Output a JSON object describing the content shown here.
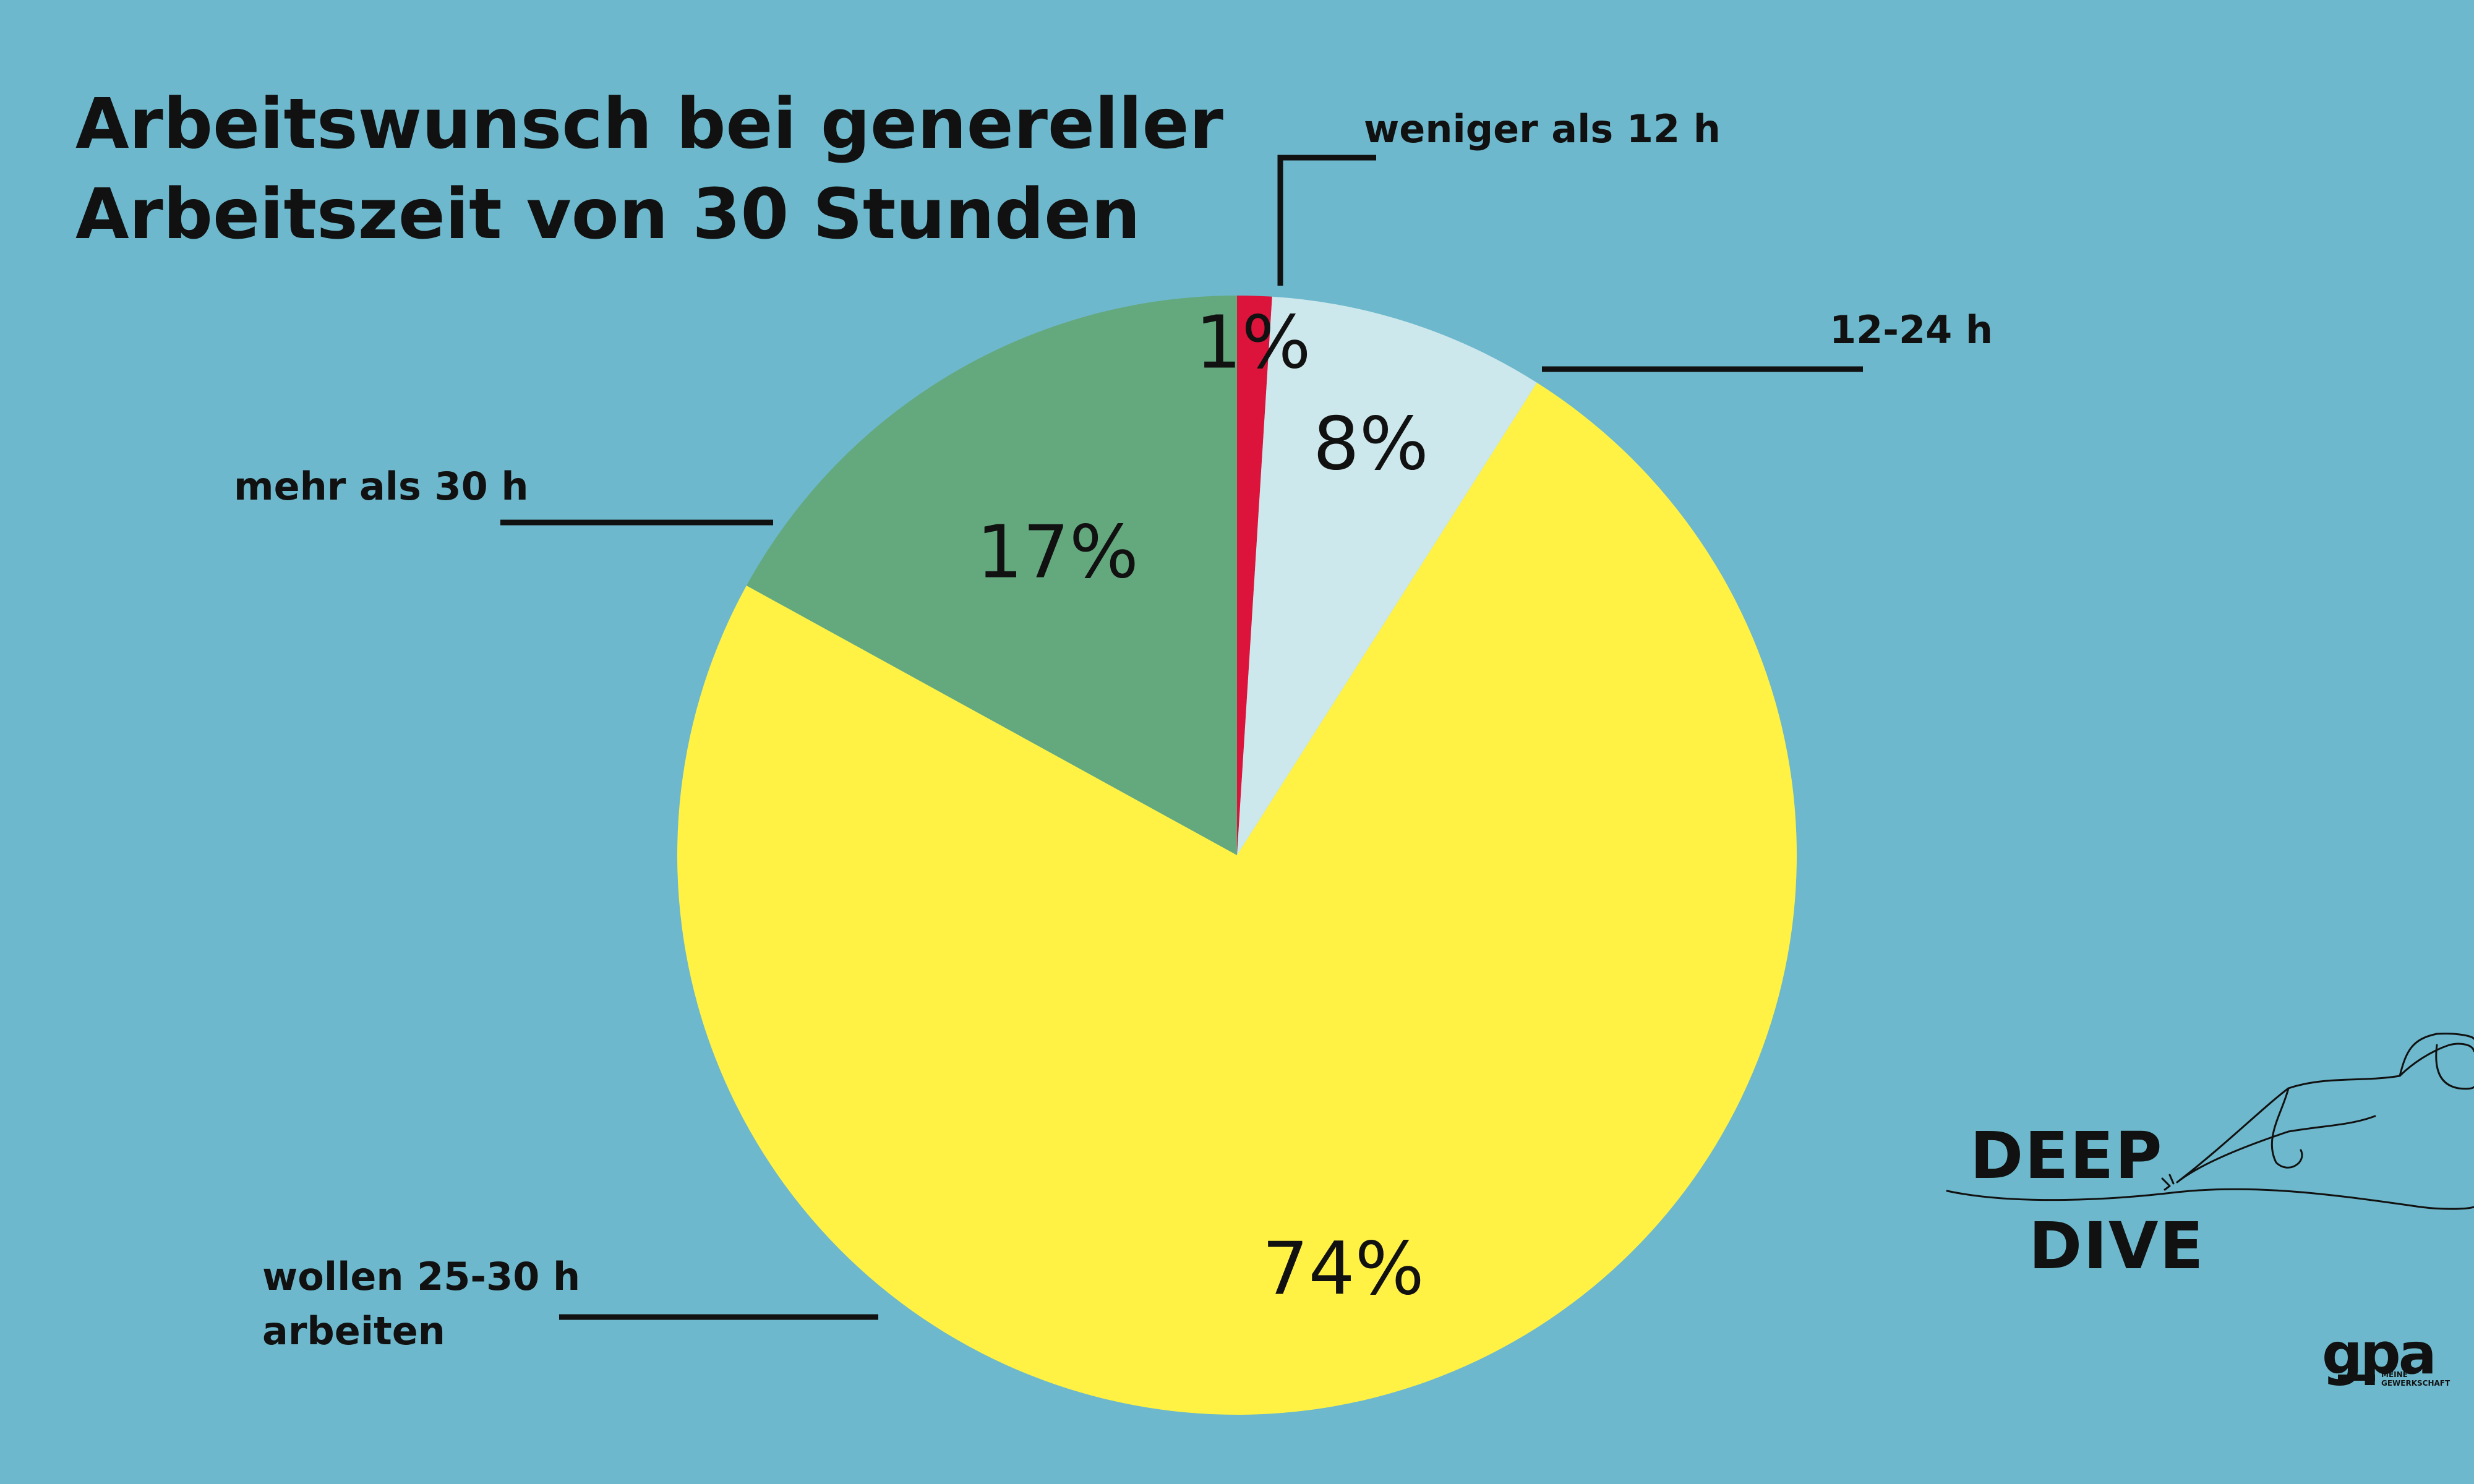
{
  "title": {
    "line1": "Arbeitswunsch bei genereller",
    "line2": "Arbeitszeit von 30 Stunden"
  },
  "chart_data": {
    "type": "pie",
    "title": "Arbeitswunsch bei genereller Arbeitszeit von 30 Stunden",
    "slices": [
      {
        "name": "weniger als 12 h",
        "value": 1,
        "percent_label": "1%",
        "color": "#dc143c"
      },
      {
        "name": "12-24 h",
        "value": 8,
        "percent_label": "8%",
        "color": "#cde8ec"
      },
      {
        "name": "wollen 25-30 h arbeiten",
        "value": 74,
        "percent_label": "74%",
        "color": "#fff245"
      },
      {
        "name": "mehr als 30 h",
        "value": 17,
        "percent_label": "17%",
        "color": "#64a87e"
      }
    ]
  },
  "category_labels": {
    "weniger": "weniger als 12 h",
    "mittel": "12-24 h",
    "wollen_line1": "wollen 25-30 h",
    "wollen_line2": "arbeiten",
    "mehr": "mehr als 30 h"
  },
  "logo": {
    "deep": "DEEP",
    "dive": "DIVE",
    "gpa": "gpa",
    "gpa_sub_line1": "MEINE",
    "gpa_sub_line2": "GEWERKSCHAFT"
  },
  "colors": {
    "background": "#6db8cc",
    "text": "#111111"
  }
}
